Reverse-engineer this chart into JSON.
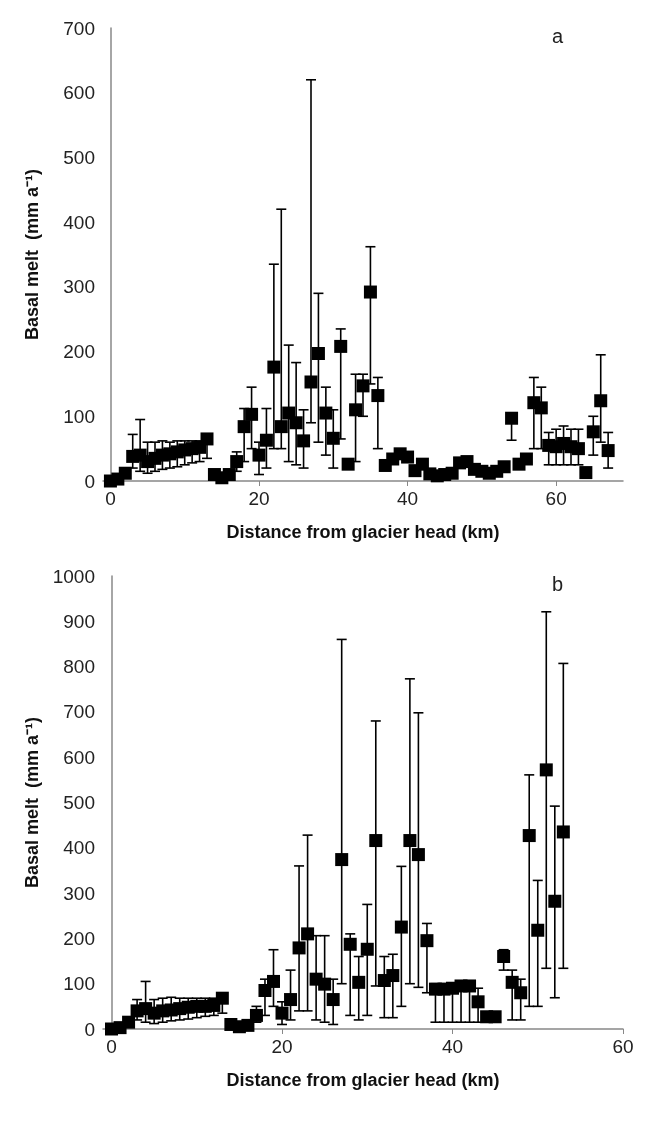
{
  "chart_data": [
    {
      "type": "scatter",
      "xlabel": "Distance from glacier head (km)",
      "ylabel": "Basal melt  (mm a⁻¹)",
      "annotations": [
        "a"
      ],
      "color": "#000000",
      "marker": "square",
      "grid": false,
      "xlim": [
        -1,
        69
      ],
      "xticks": [
        0,
        20,
        40,
        60
      ],
      "ylim": [
        0,
        700
      ],
      "yticks": [
        0,
        100,
        200,
        300,
        400,
        500,
        600,
        700
      ],
      "x": [
        0,
        1,
        2,
        3,
        4,
        5,
        6,
        7,
        8,
        9,
        10,
        11,
        12,
        13,
        14,
        15,
        16,
        17,
        18,
        19,
        20,
        21,
        22,
        23,
        24,
        25,
        26,
        27,
        28,
        29,
        30,
        31,
        32,
        33,
        34,
        35,
        36,
        37,
        38,
        39,
        40,
        41,
        42,
        43,
        44,
        45,
        46,
        47,
        48,
        49,
        50,
        51,
        52,
        53,
        54,
        55,
        56,
        57,
        58,
        59,
        60,
        61,
        62,
        63,
        64,
        65,
        66,
        67
      ],
      "values": [
        0,
        3,
        12,
        38,
        40,
        30,
        35,
        40,
        42,
        45,
        48,
        50,
        52,
        65,
        10,
        5,
        10,
        30,
        84,
        103,
        40,
        63,
        176,
        84,
        105,
        90,
        62,
        153,
        197,
        105,
        66,
        208,
        26,
        110,
        147,
        292,
        132,
        24,
        34,
        42,
        37,
        16,
        26,
        11,
        8,
        10,
        12,
        28,
        30,
        18,
        15,
        12,
        15,
        22,
        97,
        26,
        34,
        121,
        113,
        55,
        53,
        58,
        53,
        50,
        13,
        76,
        124,
        47
      ],
      "errors": [
        null,
        null,
        null,
        [
          20,
          72
        ],
        [
          15,
          95
        ],
        [
          12,
          60
        ],
        [
          15,
          60
        ],
        [
          18,
          62
        ],
        [
          20,
          60
        ],
        [
          22,
          62
        ],
        [
          25,
          62
        ],
        [
          28,
          62
        ],
        [
          30,
          62
        ],
        [
          35,
          65
        ],
        null,
        null,
        null,
        [
          15,
          45
        ],
        [
          30,
          112
        ],
        [
          50,
          145
        ],
        [
          10,
          60
        ],
        [
          20,
          112
        ],
        [
          50,
          335
        ],
        [
          50,
          420
        ],
        [
          30,
          210
        ],
        [
          25,
          183
        ],
        [
          20,
          110
        ],
        [
          90,
          620
        ],
        [
          60,
          290
        ],
        [
          40,
          145
        ],
        [
          20,
          110
        ],
        [
          65,
          235
        ],
        null,
        [
          30,
          165
        ],
        [
          100,
          165
        ],
        [
          150,
          362
        ],
        [
          50,
          160
        ],
        null,
        null,
        null,
        null,
        null,
        null,
        null,
        null,
        null,
        null,
        null,
        null,
        null,
        null,
        null,
        null,
        null,
        [
          63,
          97
        ],
        null,
        null,
        [
          50,
          160
        ],
        [
          50,
          145
        ],
        [
          25,
          75
        ],
        [
          25,
          80
        ],
        [
          25,
          85
        ],
        [
          25,
          80
        ],
        [
          25,
          80
        ],
        null,
        [
          40,
          100
        ],
        [
          60,
          195
        ],
        [
          20,
          75
        ]
      ]
    },
    {
      "type": "scatter",
      "xlabel": "Distance from glacier head (km)",
      "ylabel": "Basal melt  (mm a⁻¹)",
      "annotations": [
        "b"
      ],
      "color": "#000000",
      "marker": "square",
      "grid": false,
      "xlim": [
        -1,
        60
      ],
      "xticks": [
        0,
        20,
        40,
        60
      ],
      "ylim": [
        0,
        1000
      ],
      "yticks": [
        0,
        100,
        200,
        300,
        400,
        500,
        600,
        700,
        800,
        900,
        1000
      ],
      "x": [
        0,
        1,
        2,
        3,
        4,
        5,
        6,
        7,
        8,
        9,
        10,
        11,
        12,
        13,
        14,
        15,
        16,
        17,
        18,
        19,
        20,
        21,
        22,
        23,
        24,
        25,
        26,
        27,
        28,
        29,
        30,
        31,
        32,
        33,
        34,
        35,
        36,
        37,
        38,
        39,
        40,
        41,
        42,
        43,
        44,
        45,
        46,
        47,
        48,
        49,
        50,
        51,
        52,
        53
      ],
      "values": [
        0,
        3,
        15,
        40,
        45,
        35,
        40,
        42,
        45,
        48,
        50,
        50,
        52,
        68,
        10,
        5,
        8,
        30,
        85,
        105,
        35,
        65,
        179,
        210,
        110,
        99,
        65,
        374,
        187,
        103,
        176,
        416,
        107,
        118,
        225,
        416,
        385,
        195,
        88,
        88,
        90,
        95,
        95,
        60,
        27,
        27,
        160,
        103,
        80,
        427,
        218,
        572,
        282,
        435
      ],
      "errors": [
        null,
        null,
        null,
        [
          20,
          65
        ],
        [
          15,
          105
        ],
        [
          12,
          65
        ],
        [
          15,
          68
        ],
        [
          18,
          70
        ],
        [
          20,
          68
        ],
        [
          22,
          68
        ],
        [
          25,
          68
        ],
        [
          28,
          68
        ],
        [
          30,
          68
        ],
        [
          35,
          68
        ],
        null,
        null,
        null,
        [
          15,
          50
        ],
        [
          30,
          110
        ],
        [
          50,
          175
        ],
        [
          10,
          60
        ],
        [
          20,
          130
        ],
        [
          40,
          360
        ],
        [
          40,
          428
        ],
        [
          20,
          206
        ],
        [
          15,
          206
        ],
        [
          10,
          110
        ],
        [
          100,
          860
        ],
        [
          30,
          210
        ],
        [
          20,
          160
        ],
        [
          30,
          275
        ],
        [
          95,
          680
        ],
        [
          25,
          160
        ],
        [
          25,
          165
        ],
        [
          50,
          359
        ],
        [
          100,
          773
        ],
        [
          92,
          698
        ],
        [
          80,
          233
        ],
        [
          15,
          100
        ],
        [
          15,
          100
        ],
        [
          15,
          102
        ],
        [
          15,
          105
        ],
        [
          15,
          105
        ],
        [
          15,
          90
        ],
        null,
        null,
        [
          130,
          175
        ],
        [
          20,
          130
        ],
        [
          20,
          110
        ],
        [
          50,
          561
        ],
        [
          50,
          328
        ],
        [
          134,
          921
        ],
        [
          69,
          492
        ],
        [
          134,
          807
        ]
      ]
    }
  ]
}
